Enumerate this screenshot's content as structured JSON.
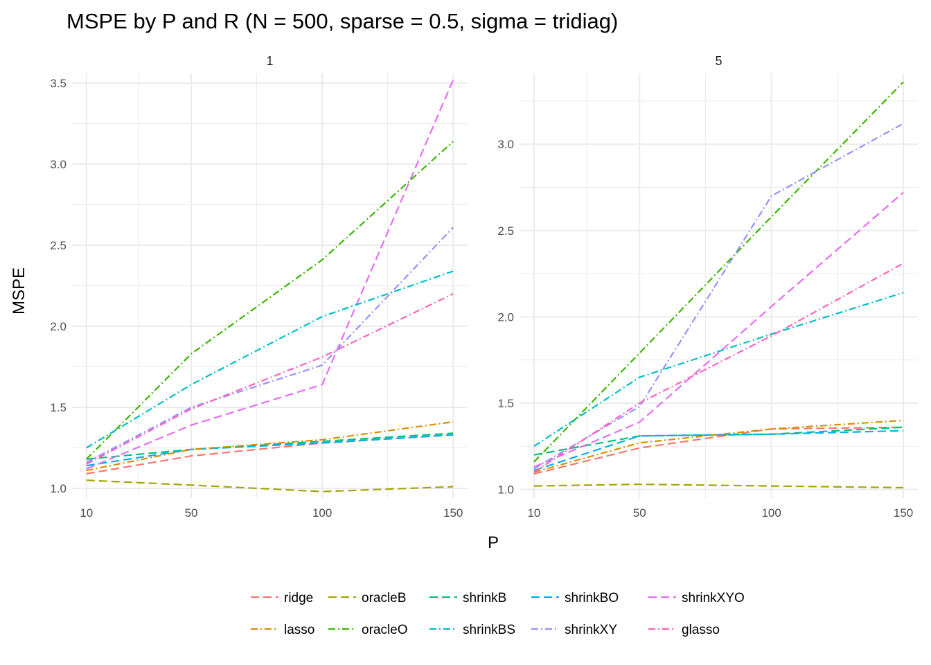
{
  "chart_data": {
    "type": "line",
    "title": "MSPE by P and R (N = 500, sparse = 0.5, sigma = tridiag)",
    "xlabel": "P",
    "ylabel": "MSPE",
    "x": [
      10,
      50,
      100,
      150
    ],
    "x_ticks": [
      "10",
      "50",
      "100",
      "150"
    ],
    "legend_position": "bottom",
    "grid": true,
    "series_styles": [
      {
        "name": "ridge",
        "color": "#F8766D",
        "dash": "12,6"
      },
      {
        "name": "oracleB",
        "color": "#A3A500",
        "dash": "12,6"
      },
      {
        "name": "shrinkB",
        "color": "#00BF7D",
        "dash": "12,6"
      },
      {
        "name": "shrinkBO",
        "color": "#00B0F6",
        "dash": "12,6"
      },
      {
        "name": "shrinkXYO",
        "color": "#E76BF3",
        "dash": "12,6"
      },
      {
        "name": "lasso",
        "color": "#D89000",
        "dash": "10,4,2,4"
      },
      {
        "name": "oracleO",
        "color": "#39B600",
        "dash": "10,4,2,4"
      },
      {
        "name": "shrinkBS",
        "color": "#00BFC4",
        "dash": "10,4,2,4"
      },
      {
        "name": "shrinkXY",
        "color": "#9590FF",
        "dash": "10,4,2,4"
      },
      {
        "name": "glasso",
        "color": "#FF62BC",
        "dash": "10,4,2,4"
      }
    ],
    "panels": [
      {
        "label": "1",
        "ylim": [
          0.94,
          3.56
        ],
        "y_ticks": [
          "1.0",
          "1.5",
          "2.0",
          "2.5",
          "3.0",
          "3.5"
        ],
        "series": [
          {
            "name": "ridge",
            "values": [
              1.09,
              1.2,
              1.28,
              1.33
            ]
          },
          {
            "name": "oracleB",
            "values": [
              1.05,
              1.02,
              0.98,
              1.01
            ]
          },
          {
            "name": "shrinkB",
            "values": [
              1.18,
              1.24,
              1.29,
              1.34
            ]
          },
          {
            "name": "shrinkBO",
            "values": [
              1.14,
              1.24,
              1.28,
              1.33
            ]
          },
          {
            "name": "shrinkXYO",
            "values": [
              1.12,
              1.39,
              1.64,
              3.52
            ]
          },
          {
            "name": "lasso",
            "values": [
              1.11,
              1.24,
              1.3,
              1.41
            ]
          },
          {
            "name": "oracleO",
            "values": [
              1.18,
              1.83,
              2.41,
              3.14
            ]
          },
          {
            "name": "shrinkBS",
            "values": [
              1.25,
              1.64,
              2.06,
              2.34
            ]
          },
          {
            "name": "shrinkXY",
            "values": [
              1.16,
              1.5,
              1.76,
              2.61
            ]
          },
          {
            "name": "glasso",
            "values": [
              1.15,
              1.49,
              1.81,
              2.2
            ]
          }
        ]
      },
      {
        "label": "5",
        "ylim": [
          0.95,
          3.41
        ],
        "y_ticks": [
          "1.0",
          "1.5",
          "2.0",
          "2.5",
          "3.0"
        ],
        "series": [
          {
            "name": "ridge",
            "values": [
              1.09,
              1.24,
              1.35,
              1.36
            ]
          },
          {
            "name": "oracleB",
            "values": [
              1.02,
              1.03,
              1.02,
              1.01
            ]
          },
          {
            "name": "shrinkB",
            "values": [
              1.2,
              1.31,
              1.32,
              1.36
            ]
          },
          {
            "name": "shrinkBO",
            "values": [
              1.11,
              1.31,
              1.32,
              1.34
            ]
          },
          {
            "name": "shrinkXYO",
            "values": [
              1.13,
              1.39,
              2.06,
              2.72
            ]
          },
          {
            "name": "lasso",
            "values": [
              1.1,
              1.27,
              1.35,
              1.4
            ]
          },
          {
            "name": "oracleO",
            "values": [
              1.16,
              1.79,
              2.58,
              3.36
            ]
          },
          {
            "name": "shrinkBS",
            "values": [
              1.25,
              1.65,
              1.9,
              2.14
            ]
          },
          {
            "name": "shrinkXY",
            "values": [
              1.12,
              1.48,
              2.7,
              3.12
            ]
          },
          {
            "name": "glasso",
            "values": [
              1.1,
              1.5,
              1.89,
              2.31
            ]
          }
        ]
      }
    ]
  }
}
